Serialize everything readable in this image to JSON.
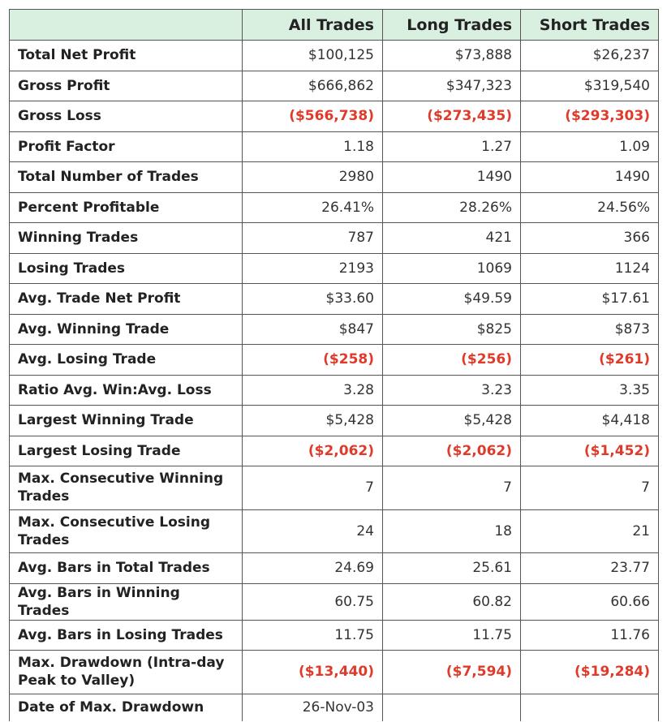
{
  "table": {
    "headers": [
      "",
      "All Trades",
      "Long Trades",
      "Short Trades"
    ],
    "rows": [
      {
        "label": "Total Net Profit",
        "values": [
          "$100,125",
          "$73,888",
          "$26,237"
        ],
        "negative": false
      },
      {
        "label": "Gross Profit",
        "values": [
          "$666,862",
          "$347,323",
          "$319,540"
        ],
        "negative": false
      },
      {
        "label": "Gross Loss",
        "values": [
          "($566,738)",
          "($273,435)",
          "($293,303)"
        ],
        "negative": true
      },
      {
        "label": "Profit Factor",
        "values": [
          "1.18",
          "1.27",
          "1.09"
        ],
        "negative": false
      },
      {
        "label": "Total Number of Trades",
        "values": [
          "2980",
          "1490",
          "1490"
        ],
        "negative": false
      },
      {
        "label": "Percent Profitable",
        "values": [
          "26.41%",
          "28.26%",
          "24.56%"
        ],
        "negative": false
      },
      {
        "label": "Winning Trades",
        "values": [
          "787",
          "421",
          "366"
        ],
        "negative": false
      },
      {
        "label": "Losing Trades",
        "values": [
          "2193",
          "1069",
          "1124"
        ],
        "negative": false
      },
      {
        "label": "Avg. Trade Net Profit",
        "values": [
          "$33.60",
          "$49.59",
          "$17.61"
        ],
        "negative": false
      },
      {
        "label": "Avg. Winning Trade",
        "values": [
          "$847",
          "$825",
          "$873"
        ],
        "negative": false
      },
      {
        "label": "Avg. Losing Trade",
        "values": [
          "($258)",
          "($256)",
          "($261)"
        ],
        "negative": true
      },
      {
        "label": "Ratio Avg. Win:Avg. Loss",
        "values": [
          "3.28",
          "3.23",
          "3.35"
        ],
        "negative": false
      },
      {
        "label": "Largest Winning Trade",
        "values": [
          "$5,428",
          "$5,428",
          "$4,418"
        ],
        "negative": false
      },
      {
        "label": "Largest Losing Trade",
        "values": [
          "($2,062)",
          "($2,062)",
          "($1,452)"
        ],
        "negative": true
      },
      {
        "label": "Max. Consecutive Winning Trades",
        "values": [
          "7",
          "7",
          "7"
        ],
        "negative": false,
        "tall": true
      },
      {
        "label": "Max. Consecutive Losing Trades",
        "values": [
          "24",
          "18",
          "21"
        ],
        "negative": false,
        "tall": true
      },
      {
        "label": "Avg. Bars in Total Trades",
        "values": [
          "24.69",
          "25.61",
          "23.77"
        ],
        "negative": false
      },
      {
        "label": "Avg. Bars in Winning Trades",
        "values": [
          "60.75",
          "60.82",
          "60.66"
        ],
        "negative": false
      },
      {
        "label": "Avg. Bars in Losing Trades",
        "values": [
          "11.75",
          "11.75",
          "11.76"
        ],
        "negative": false
      },
      {
        "label": "Max. Drawdown (Intra-day Peak to Valley)",
        "values": [
          "($13,440)",
          "($7,594)",
          "($19,284)"
        ],
        "negative": true,
        "tall": true
      },
      {
        "label": "Date of Max. Drawdown",
        "values": [
          "26-Nov-03",
          "",
          ""
        ],
        "negative": false,
        "last": true
      }
    ]
  }
}
